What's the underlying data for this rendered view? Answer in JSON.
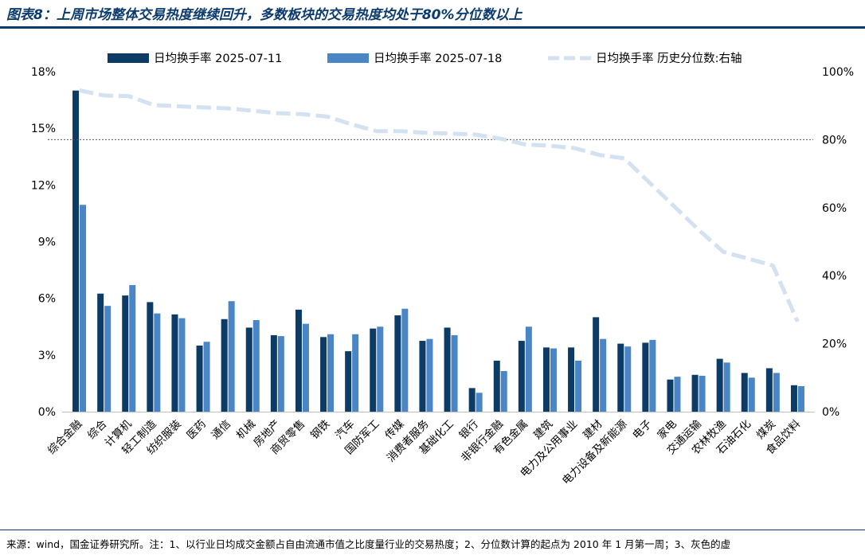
{
  "header": {
    "title": "图表8：上周市场整体交易热度继续回升，多数板块的交易热度均处于80%分位数以上"
  },
  "footer": {
    "source": "来源：wind，国金证券研究所。注：1、以行业日均成交金额占自由流通市值之比度量行业的交易热度；2、分位数计算的起点为 2010 年 1 月第一周；3、灰色的虚"
  },
  "colors": {
    "series_dark": "#0c3c66",
    "series_light": "#4a86c5",
    "line": "#d3e1f0",
    "ref_line": "#555555"
  },
  "chart_data": {
    "type": "bar",
    "title": "上周市场整体交易热度继续回升，多数板块的交易热度均处于80%分位数以上",
    "categories": [
      "综合金融",
      "综合",
      "计算机",
      "轻工制造",
      "纺织服装",
      "医药",
      "通信",
      "机械",
      "房地产",
      "商贸零售",
      "钢铁",
      "汽车",
      "国防军工",
      "传媒",
      "消费者服务",
      "基础化工",
      "银行",
      "非银行金融",
      "有色金属",
      "建筑",
      "电力及公用事业",
      "建材",
      "电力设备及新能源",
      "电子",
      "家电",
      "交通运输",
      "农林牧渔",
      "石油石化",
      "煤炭",
      "食品饮料"
    ],
    "series": [
      {
        "name": "日均换手率 2025-07-11",
        "type": "bar",
        "axis": "left",
        "values": [
          17.0,
          6.25,
          6.15,
          5.8,
          5.15,
          3.5,
          4.9,
          4.45,
          4.05,
          5.4,
          3.95,
          3.2,
          4.4,
          5.1,
          3.75,
          4.45,
          1.25,
          2.7,
          3.75,
          3.4,
          3.4,
          5.0,
          3.6,
          3.65,
          1.7,
          1.95,
          2.8,
          2.05,
          2.3,
          1.4
        ]
      },
      {
        "name": "日均换手率 2025-07-18",
        "type": "bar",
        "axis": "left",
        "values": [
          10.95,
          5.6,
          6.7,
          5.2,
          4.95,
          3.7,
          5.85,
          4.85,
          4.0,
          4.65,
          4.1,
          4.1,
          4.5,
          5.45,
          3.85,
          4.05,
          1.0,
          2.15,
          4.5,
          3.35,
          2.7,
          3.85,
          3.45,
          3.8,
          1.85,
          1.9,
          2.6,
          1.8,
          2.05,
          1.35
        ]
      },
      {
        "name": "日均换手率 历史分位数:右轴",
        "type": "line",
        "axis": "right",
        "values": [
          94.5,
          93.0,
          92.8,
          90.2,
          89.8,
          89.5,
          89.2,
          88.5,
          87.8,
          87.5,
          86.8,
          84.5,
          82.5,
          82.5,
          82.0,
          81.8,
          81.5,
          80.3,
          78.6,
          78.2,
          77.5,
          75.5,
          74.5,
          67.5,
          60.5,
          53.5,
          47.0,
          45.0,
          43.0,
          26.5
        ]
      }
    ],
    "left_axis": {
      "min": 0,
      "max": 18,
      "ticks": [
        "0%",
        "3%",
        "6%",
        "9%",
        "12%",
        "15%",
        "18%"
      ]
    },
    "right_axis": {
      "min": 0,
      "max": 100,
      "ticks": [
        "0%",
        "20%",
        "40%",
        "60%",
        "80%",
        "100%"
      ]
    },
    "reference_line": {
      "axis": "right",
      "value": 80
    },
    "legend": {
      "position": "top",
      "labels": [
        "日均换手率 2025-07-11",
        "日均换手率 2025-07-18",
        "日均换手率 历史分位数:右轴"
      ]
    }
  }
}
